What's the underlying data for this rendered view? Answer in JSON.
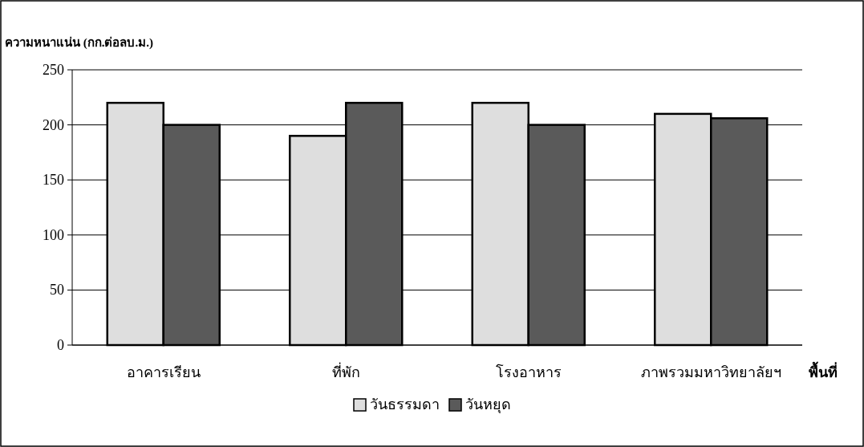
{
  "chart_data": {
    "type": "bar",
    "ylabel": "ความหนาแน่น (กก.ต่อลบ.ม.)",
    "xlabel": "พื้นที่",
    "categories": [
      "อาคารเรียน",
      "ที่พัก",
      "โรงอาหาร",
      "ภาพรวมมหาวิทยาลัยฯ"
    ],
    "series": [
      {
        "name": "วันธรรมดา",
        "color": "#dedede",
        "values": [
          220,
          190,
          220,
          210
        ]
      },
      {
        "name": "วันหยุด",
        "color": "#5a5a5a",
        "values": [
          200,
          220,
          200,
          206
        ]
      }
    ],
    "ylim": [
      0,
      250
    ],
    "yticks": [
      0,
      50,
      100,
      150,
      200,
      250
    ],
    "grid": "y",
    "legend": "bottom"
  }
}
